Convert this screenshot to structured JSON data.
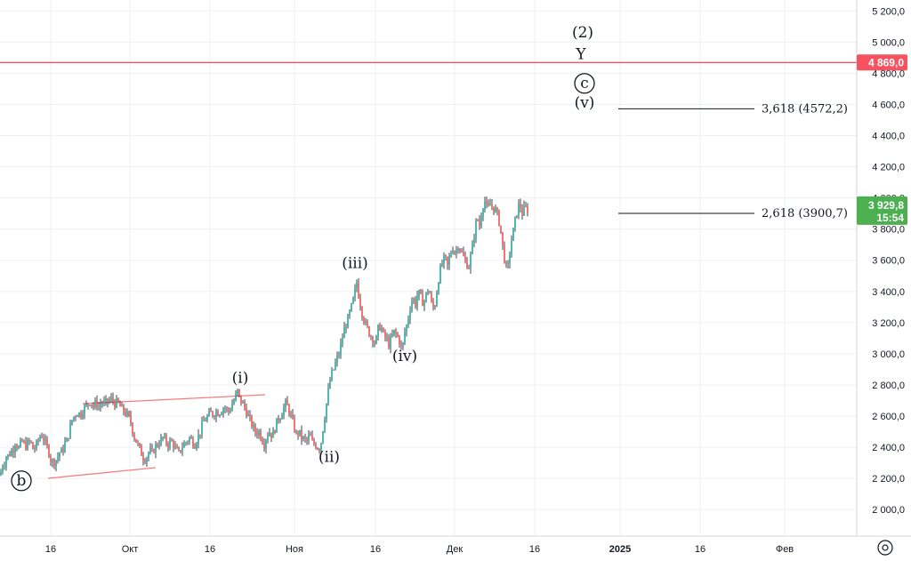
{
  "chart_data": {
    "type": "candlestick",
    "y_axis": {
      "ticks": [
        "2 000,0",
        "2 200,0",
        "2 400,0",
        "2 600,0",
        "2 800,0",
        "3 000,0",
        "3 200,0",
        "3 400,0",
        "3 600,0",
        "3 800,0",
        "4 000,0",
        "4 200,0",
        "4 400,0",
        "4 600,0",
        "4 800,0",
        "5 000,0",
        "5 200,0"
      ],
      "tick_values": [
        2000,
        2200,
        2400,
        2600,
        2800,
        3000,
        3200,
        3400,
        3600,
        3800,
        4000,
        4200,
        4400,
        4600,
        4800,
        5000,
        5200
      ],
      "range": [
        1830,
        5270
      ]
    },
    "x_axis": {
      "labels": [
        "16",
        "Окт",
        "16",
        "Ноя",
        "16",
        "Дек",
        "16",
        "2025",
        "16",
        "Фев"
      ],
      "bold": [
        false,
        false,
        false,
        false,
        false,
        false,
        false,
        true,
        false,
        false
      ]
    },
    "grid": true,
    "horizontal_line": {
      "value": 4869.0,
      "label": "4 869,0",
      "color": "#f7525f"
    },
    "current_price": {
      "value": 3929.8,
      "label": "3 929,8",
      "timer": "15:54",
      "color": "#4caf50"
    },
    "fib_levels": [
      {
        "text": "3,618 (4572,2)",
        "value": 4572.2
      },
      {
        "text": "2,618 (3900,7)",
        "value": 3900.7
      }
    ],
    "price_path": [
      [
        0,
        2220
      ],
      [
        3,
        2290
      ],
      [
        5,
        2300
      ],
      [
        8,
        2360
      ],
      [
        10,
        2330
      ],
      [
        12,
        2390
      ],
      [
        14,
        2360
      ],
      [
        16,
        2420
      ],
      [
        18,
        2440
      ],
      [
        20,
        2380
      ],
      [
        22,
        2410
      ],
      [
        24,
        2430
      ],
      [
        26,
        2440
      ],
      [
        28,
        2400
      ],
      [
        30,
        2420
      ],
      [
        34,
        2440
      ],
      [
        37,
        2390
      ],
      [
        40,
        2400
      ],
      [
        42,
        2430
      ],
      [
        44,
        2460
      ],
      [
        46,
        2480
      ],
      [
        48,
        2470
      ],
      [
        50,
        2440
      ],
      [
        52,
        2410
      ],
      [
        55,
        2370
      ],
      [
        57,
        2320
      ],
      [
        60,
        2300
      ],
      [
        63,
        2320
      ],
      [
        65,
        2340
      ],
      [
        68,
        2380
      ],
      [
        70,
        2360
      ],
      [
        72,
        2420
      ],
      [
        75,
        2440
      ],
      [
        78,
        2500
      ],
      [
        80,
        2560
      ],
      [
        82,
        2590
      ],
      [
        85,
        2610
      ],
      [
        88,
        2630
      ],
      [
        90,
        2600
      ],
      [
        93,
        2640
      ],
      [
        96,
        2660
      ],
      [
        99,
        2680
      ],
      [
        102,
        2700
      ],
      [
        105,
        2660
      ],
      [
        108,
        2690
      ],
      [
        111,
        2660
      ],
      [
        114,
        2690
      ],
      [
        117,
        2680
      ],
      [
        120,
        2690
      ],
      [
        123,
        2700
      ],
      [
        126,
        2710
      ],
      [
        129,
        2680
      ],
      [
        132,
        2690
      ],
      [
        135,
        2660
      ],
      [
        138,
        2640
      ],
      [
        141,
        2620
      ],
      [
        144,
        2600
      ],
      [
        147,
        2560
      ],
      [
        150,
        2480
      ],
      [
        153,
        2440
      ],
      [
        156,
        2400
      ],
      [
        159,
        2360
      ],
      [
        162,
        2320
      ],
      [
        165,
        2340
      ],
      [
        168,
        2380
      ],
      [
        171,
        2360
      ],
      [
        174,
        2400
      ],
      [
        177,
        2420
      ],
      [
        180,
        2440
      ],
      [
        183,
        2460
      ],
      [
        186,
        2440
      ],
      [
        189,
        2420
      ],
      [
        192,
        2440
      ],
      [
        195,
        2420
      ],
      [
        198,
        2380
      ],
      [
        201,
        2360
      ],
      [
        204,
        2400
      ],
      [
        207,
        2420
      ],
      [
        210,
        2440
      ],
      [
        213,
        2460
      ],
      [
        216,
        2440
      ],
      [
        219,
        2420
      ],
      [
        222,
        2460
      ],
      [
        225,
        2500
      ],
      [
        228,
        2560
      ],
      [
        231,
        2580
      ],
      [
        234,
        2600
      ],
      [
        237,
        2620
      ],
      [
        240,
        2610
      ],
      [
        243,
        2630
      ],
      [
        246,
        2620
      ],
      [
        249,
        2640
      ],
      [
        252,
        2660
      ],
      [
        255,
        2640
      ],
      [
        258,
        2630
      ],
      [
        261,
        2680
      ],
      [
        264,
        2710
      ],
      [
        267,
        2760
      ],
      [
        270,
        2700
      ],
      [
        273,
        2680
      ],
      [
        276,
        2640
      ],
      [
        279,
        2600
      ],
      [
        282,
        2560
      ],
      [
        285,
        2520
      ],
      [
        288,
        2490
      ],
      [
        291,
        2500
      ],
      [
        294,
        2460
      ],
      [
        297,
        2420
      ],
      [
        300,
        2480
      ],
      [
        303,
        2500
      ],
      [
        306,
        2470
      ],
      [
        309,
        2520
      ],
      [
        312,
        2580
      ],
      [
        315,
        2600
      ],
      [
        318,
        2640
      ],
      [
        321,
        2680
      ],
      [
        324,
        2650
      ],
      [
        327,
        2600
      ],
      [
        330,
        2540
      ],
      [
        333,
        2480
      ],
      [
        336,
        2500
      ],
      [
        339,
        2460
      ],
      [
        342,
        2450
      ],
      [
        345,
        2440
      ],
      [
        348,
        2480
      ],
      [
        351,
        2430
      ],
      [
        354,
        2420
      ],
      [
        357,
        2400
      ],
      [
        360,
        2390
      ],
      [
        362,
        2480
      ],
      [
        364,
        2560
      ],
      [
        366,
        2640
      ],
      [
        368,
        2720
      ],
      [
        370,
        2800
      ],
      [
        372,
        2860
      ],
      [
        375,
        2900
      ],
      [
        378,
        2960
      ],
      [
        381,
        3000
      ],
      [
        384,
        3080
      ],
      [
        387,
        3160
      ],
      [
        390,
        3200
      ],
      [
        393,
        3260
      ],
      [
        396,
        3320
      ],
      [
        399,
        3400
      ],
      [
        401,
        3460
      ],
      [
        403,
        3380
      ],
      [
        405,
        3320
      ],
      [
        407,
        3260
      ],
      [
        410,
        3200
      ],
      [
        413,
        3160
      ],
      [
        416,
        3120
      ],
      [
        419,
        3100
      ],
      [
        422,
        3060
      ],
      [
        425,
        3160
      ],
      [
        428,
        3180
      ],
      [
        431,
        3120
      ],
      [
        434,
        3100
      ],
      [
        437,
        3060
      ],
      [
        440,
        3100
      ],
      [
        443,
        3140
      ],
      [
        446,
        3120
      ],
      [
        449,
        3080
      ],
      [
        452,
        3020
      ],
      [
        455,
        3140
      ],
      [
        458,
        3200
      ],
      [
        461,
        3300
      ],
      [
        464,
        3360
      ],
      [
        467,
        3320
      ],
      [
        470,
        3400
      ],
      [
        473,
        3360
      ],
      [
        476,
        3320
      ],
      [
        479,
        3380
      ],
      [
        482,
        3420
      ],
      [
        485,
        3320
      ],
      [
        488,
        3280
      ],
      [
        491,
        3400
      ],
      [
        494,
        3520
      ],
      [
        497,
        3580
      ],
      [
        500,
        3620
      ],
      [
        503,
        3560
      ],
      [
        506,
        3640
      ],
      [
        509,
        3680
      ],
      [
        512,
        3640
      ],
      [
        515,
        3700
      ],
      [
        518,
        3660
      ],
      [
        521,
        3620
      ],
      [
        524,
        3580
      ],
      [
        527,
        3560
      ],
      [
        530,
        3660
      ],
      [
        533,
        3760
      ],
      [
        536,
        3880
      ],
      [
        539,
        3820
      ],
      [
        542,
        3940
      ],
      [
        545,
        3980
      ],
      [
        548,
        3920
      ],
      [
        551,
        3960
      ],
      [
        554,
        3940
      ],
      [
        557,
        3920
      ],
      [
        560,
        3880
      ],
      [
        563,
        3780
      ],
      [
        566,
        3640
      ],
      [
        568,
        3580
      ],
      [
        570,
        3520
      ],
      [
        572,
        3600
      ],
      [
        574,
        3700
      ],
      [
        576,
        3760
      ],
      [
        578,
        3820
      ],
      [
        580,
        3880
      ],
      [
        582,
        3940
      ],
      [
        584,
        3960
      ],
      [
        587,
        3900
      ],
      [
        590,
        3940
      ],
      [
        593,
        3920
      ]
    ],
    "wave_labels": [
      {
        "text": "(i)",
        "price": 2815,
        "at": 270
      },
      {
        "text": "(ii)",
        "price": 2305,
        "at": 370
      },
      {
        "text": "(iii)",
        "price": 3550,
        "at": 399
      },
      {
        "text": "(iv)",
        "price": 2955,
        "at": 455
      },
      {
        "text": "(v)",
        "price": 4580,
        "at": 657
      },
      {
        "text": "(2)",
        "price": 5030,
        "at": 655
      },
      {
        "text": "Y",
        "price": 4890,
        "at": 653
      }
    ],
    "circled_labels": [
      {
        "text": "b",
        "price": 2185,
        "at": 24
      },
      {
        "text": "c",
        "price": 4735,
        "at": 657
      }
    ]
  }
}
